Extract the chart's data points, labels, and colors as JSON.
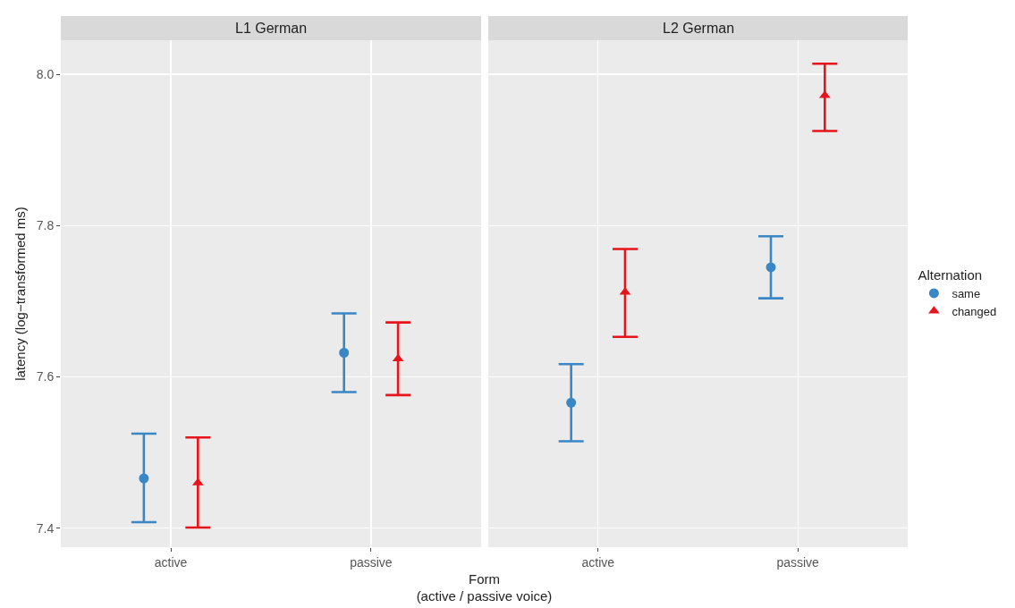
{
  "chart_data": [
    {
      "type": "scatter",
      "title": "L1 German",
      "xlabel": "Form\n(active / passive voice)",
      "ylabel": "latency (log−transformed ms)",
      "categories": [
        "active",
        "passive"
      ],
      "ylim": [
        7.375,
        8.045
      ],
      "yticks": [
        {
          "value": 7.4,
          "label": "7.4"
        },
        {
          "value": 7.6,
          "label": "7.6"
        },
        {
          "value": 7.8,
          "label": "7.8"
        },
        {
          "value": 8.0,
          "label": "8.0"
        }
      ],
      "grid": true,
      "legend": false,
      "series": [
        {
          "color": "#3a87c8",
          "marker": "circle",
          "values": [
            7.466,
            7.632
          ],
          "errors": [
            [
              7.408,
              7.525
            ],
            [
              7.58,
              7.684
            ]
          ]
        },
        {
          "color": "#e8141c",
          "marker": "triangle",
          "values": [
            7.46,
            7.624
          ],
          "errors": [
            [
              7.401,
              7.52
            ],
            [
              7.576,
              7.672
            ]
          ]
        }
      ]
    },
    {
      "type": "scatter",
      "title": "L2 German",
      "categories": [
        "active",
        "passive"
      ],
      "ylim": [
        7.375,
        8.045
      ],
      "yticks": [
        7.4,
        7.6,
        7.8,
        8.0
      ],
      "tick_labels": "x",
      "grid": true,
      "legend": "right",
      "legend_title": "Alternation",
      "series": [
        {
          "name": "same",
          "color": "#3a87c8",
          "marker": "circle",
          "values": [
            7.566,
            7.745
          ],
          "errors": [
            [
              7.515,
              7.617
            ],
            [
              7.704,
              7.786
            ]
          ]
        },
        {
          "name": "changed",
          "color": "#e8141c",
          "marker": "triangle",
          "values": [
            7.712,
            7.972
          ],
          "errors": [
            [
              7.653,
              7.769
            ],
            [
              7.925,
              8.014
            ]
          ]
        }
      ]
    }
  ]
}
